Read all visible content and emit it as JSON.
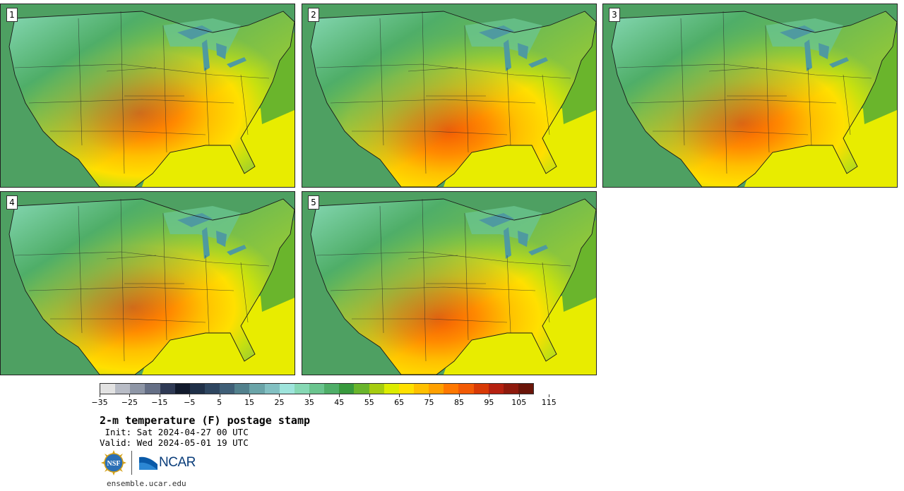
{
  "panels": [
    {
      "label": "1",
      "warm_center": "south-central plains",
      "peak_color": "#f25a05"
    },
    {
      "label": "2",
      "warm_center": "texas panhandle",
      "peak_color": "#f25a05"
    },
    {
      "label": "3",
      "warm_center": "oklahoma / texas",
      "peak_color": "#f25a05"
    },
    {
      "label": "4",
      "warm_center": "kansas / oklahoma",
      "peak_color": "#f25a05"
    },
    {
      "label": "5",
      "warm_center": "texas",
      "peak_color": "#f25a05"
    }
  ],
  "colorbar": {
    "colors": [
      "#e2e2e2",
      "#b8bcc6",
      "#8e96a6",
      "#656f86",
      "#2f3a55",
      "#111a2c",
      "#1f3048",
      "#2e4660",
      "#3f5f77",
      "#52818d",
      "#6aa4a8",
      "#82c0c2",
      "#9ee4dc",
      "#86d8b4",
      "#6ac48e",
      "#4fae68",
      "#38993d",
      "#6ab52c",
      "#a6cc10",
      "#dcec00",
      "#ffe000",
      "#ffc000",
      "#ffa000",
      "#ff7800",
      "#f25a05",
      "#d83a06",
      "#b52110",
      "#8e1a0d",
      "#6a1509"
    ],
    "tick_labels": [
      "−35",
      "−25",
      "−15",
      "−5",
      "5",
      "15",
      "25",
      "35",
      "45",
      "55",
      "65",
      "75",
      "85",
      "95",
      "105",
      "115"
    ]
  },
  "title": "2-m temperature (F) postage stamp",
  "init": " Init: Sat 2024-04-27 00 UTC",
  "valid": "Valid: Wed 2024-05-01 19 UTC",
  "logos": {
    "nsf": "NSF",
    "ncar": "NCAR"
  },
  "site": "ensemble.ucar.edu"
}
